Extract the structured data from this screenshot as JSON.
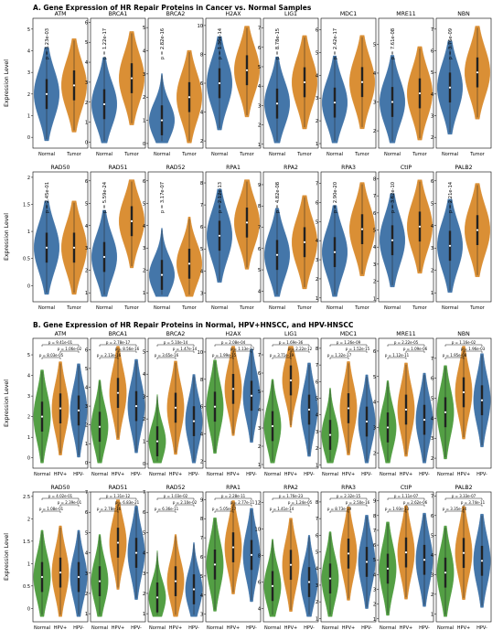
{
  "colors": {
    "normal": "#3a6fa5",
    "tumor": "#d98a2b",
    "hpvpos": "#d98a2b",
    "hpvneg": "#3a6fa5",
    "hpvneg_alt": "#4a8ab8",
    "green": "#4a9a3a"
  },
  "sectionA": {
    "title": "A. Gene Expression of HR Repair Proteins in Cancer vs. Normal Samples",
    "ylabel": "Expression Level",
    "group_labels": [
      "Normal",
      "Tumor"
    ]
  },
  "sectionB": {
    "title": "B. Gene Expression of HR Repair Proteins in Normal, HPV+HNSCC, and HPV-HNSCC",
    "ylabel": "Expression Level",
    "group_labels": [
      "Normal",
      "HPV+",
      "HPV-"
    ]
  },
  "chart_data": [
    {
      "type": "violin",
      "section": "A",
      "panels": [
        {
          "gene": "ATM",
          "pvalue": "p = 3.23e-03",
          "yticks": [
            0,
            1,
            2,
            3,
            4,
            5
          ],
          "ylim": [
            -0.5,
            5.5
          ],
          "normal": 2.0,
          "tumor": 2.4
        },
        {
          "gene": "BRCA1",
          "pvalue": "p = 1.22e-17",
          "yticks": [
            0,
            1,
            2,
            3,
            4,
            5,
            6
          ],
          "ylim": [
            -0.3,
            6.2
          ],
          "normal": 1.9,
          "tumor": 3.2
        },
        {
          "gene": "BRCA2",
          "pvalue": "p = 2.82e-16",
          "yticks": [
            0,
            1,
            2,
            3,
            4,
            5
          ],
          "ylim": [
            -0.2,
            5.4
          ],
          "normal": 1.0,
          "tumor": 2.0
        },
        {
          "gene": "H2AX",
          "pvalue": "p = 1.36e-14",
          "yticks": [
            2,
            4,
            6,
            8,
            10
          ],
          "ylim": [
            1.5,
            10.5
          ],
          "normal": 6.0,
          "tumor": 6.9
        },
        {
          "gene": "LIG1",
          "pvalue": "p = 8.78e-15",
          "yticks": [
            1,
            2,
            3,
            4,
            5,
            6,
            7
          ],
          "ylim": [
            0.8,
            7.5
          ],
          "normal": 3.1,
          "tumor": 4.2
        },
        {
          "gene": "MDC1",
          "pvalue": "p = 2.42e-17",
          "yticks": [
            1,
            2,
            3,
            4,
            5,
            6
          ],
          "ylim": [
            0.8,
            6.5
          ],
          "normal": 2.8,
          "tumor": 3.7
        },
        {
          "gene": "MRE11",
          "pvalue": "p = 7.61e-08",
          "yticks": [
            2,
            3,
            4,
            5
          ],
          "ylim": [
            1.4,
            5.9
          ],
          "normal": 3.0,
          "tumor": 3.3
        },
        {
          "gene": "NBN",
          "pvalue": "p = 3.76e-09",
          "yticks": [
            2,
            3,
            4,
            5,
            6,
            7
          ],
          "ylim": [
            1.5,
            7.5
          ],
          "normal": 4.3,
          "tumor": 5.0
        },
        {
          "gene": "RAD50",
          "pvalue": "p = 2.45e-01",
          "yticks": [
            0.0,
            0.5,
            1.0,
            1.5,
            2.0
          ],
          "ylim": [
            -0.3,
            2.1
          ],
          "normal": 0.7,
          "tumor": 0.7
        },
        {
          "gene": "RAD51",
          "pvalue": "p = 5.59e-24",
          "yticks": [
            1,
            2,
            3,
            4,
            5,
            6
          ],
          "ylim": [
            0.6,
            6.4
          ],
          "normal": 2.6,
          "tumor": 4.2
        },
        {
          "gene": "RAD52",
          "pvalue": "p = 3.17e-07",
          "yticks": [
            1,
            2,
            3,
            4,
            5,
            6
          ],
          "ylim": [
            0.6,
            6.4
          ],
          "normal": 1.8,
          "tumor": 2.3
        },
        {
          "gene": "RPA1",
          "pvalue": "p = 2.12e-13",
          "yticks": [
            3,
            4,
            5,
            6,
            7,
            8
          ],
          "ylim": [
            2.6,
            8.5
          ],
          "normal": 5.6,
          "tumor": 6.2
        },
        {
          "gene": "RPA2",
          "pvalue": "p = 4.82e-08",
          "yticks": [
            4,
            5,
            6,
            7,
            8,
            9
          ],
          "ylim": [
            3.5,
            9.6
          ],
          "normal": 5.7,
          "tumor": 6.3
        },
        {
          "gene": "RPA3",
          "pvalue": "p = 2.90e-20",
          "yticks": [
            1,
            2,
            3,
            4,
            5,
            6,
            7
          ],
          "ylim": [
            0.8,
            7.6
          ],
          "normal": 3.4,
          "tumor": 4.6
        },
        {
          "gene": "CtIP",
          "pvalue": "p = 3.62e-10",
          "yticks": [
            1,
            2,
            3,
            4,
            5,
            6,
            7,
            8
          ],
          "ylim": [
            0.8,
            8.4
          ],
          "normal": 4.4,
          "tumor": 5.2
        },
        {
          "gene": "PALB2",
          "pvalue": "p = 2.21e-14",
          "yticks": [
            1,
            2,
            3,
            4,
            5,
            6
          ],
          "ylim": [
            0.6,
            6.4
          ],
          "normal": 3.1,
          "tumor": 3.8
        }
      ]
    },
    {
      "type": "violin",
      "section": "B",
      "panels": [
        {
          "gene": "ATM",
          "pvals": [
            "p = 9.41e-01",
            "p = 1.06e-02",
            "p = 8.03e-05"
          ],
          "yticks": [
            0,
            1,
            2,
            3,
            4,
            5
          ],
          "ylim": [
            -0.5,
            5.8
          ],
          "meds": [
            2.0,
            2.4,
            2.3
          ]
        },
        {
          "gene": "BRCA1",
          "pvals": [
            "p = 2.78e-17",
            "p = 8.56e-16",
            "p = 2.13e-16"
          ],
          "yticks": [
            0,
            1,
            2,
            3,
            4,
            5,
            6
          ],
          "ylim": [
            -0.3,
            6.6
          ],
          "meds": [
            1.9,
            3.7,
            3.0
          ]
        },
        {
          "gene": "BRCA2",
          "pvals": [
            "p = 5.10e-14",
            "p = 1.47e-14",
            "p = 3.65e-16"
          ],
          "yticks": [
            0,
            1,
            2,
            3,
            4,
            5
          ],
          "ylim": [
            -0.2,
            5.6
          ],
          "meds": [
            1.0,
            2.5,
            1.9
          ]
        },
        {
          "gene": "H2AX",
          "pvals": [
            "p = 2.08e-04",
            "p = 1.13e-12",
            "p = 1.99e-15"
          ],
          "yticks": [
            2,
            4,
            6,
            8,
            10
          ],
          "ylim": [
            1.5,
            11.0
          ],
          "meds": [
            6.0,
            7.3,
            6.8
          ]
        },
        {
          "gene": "LIG1",
          "pvals": [
            "p = 1.69e-36",
            "p = 2.22e-12",
            "p = 3.71e-19"
          ],
          "yticks": [
            1,
            2,
            3,
            4,
            5,
            6,
            7
          ],
          "ylim": [
            0.8,
            7.9
          ],
          "meds": [
            3.1,
            5.6,
            4.0
          ]
        },
        {
          "gene": "MDC1",
          "pvals": [
            "p = 1.26e-09",
            "p = 1.52e-15",
            "p = 1.32e-17"
          ],
          "yticks": [
            1,
            2,
            3,
            4,
            5,
            6,
            7,
            8
          ],
          "ylim": [
            0.8,
            8.6
          ],
          "meds": [
            2.8,
            4.4,
            3.6
          ]
        },
        {
          "gene": "MRE11",
          "pvals": [
            "p = 2.22e-05",
            "p = 1.09e-06",
            "p = 1.12e-11"
          ],
          "yticks": [
            2,
            3,
            4,
            5,
            6
          ],
          "ylim": [
            1.4,
            6.5
          ],
          "meds": [
            3.0,
            3.7,
            3.3
          ]
        },
        {
          "gene": "NBN",
          "pvals": [
            "p = 1.16e-02",
            "p = 1.96e-03",
            "p = 1.95e-08"
          ],
          "yticks": [
            2,
            3,
            4,
            5,
            6,
            7
          ],
          "ylim": [
            1.5,
            8.0
          ],
          "meds": [
            4.3,
            5.3,
            4.9
          ]
        },
        {
          "gene": "RAD50",
          "pvals": [
            "p = 4.02e-01",
            "p = 2.39e-01",
            "p = 1.08e-01"
          ],
          "yticks": [
            0.0,
            0.5,
            1.0,
            1.5,
            2.0,
            2.5
          ],
          "ylim": [
            -0.3,
            2.6
          ],
          "meds": [
            0.7,
            0.8,
            0.7
          ]
        },
        {
          "gene": "RAD51",
          "pvals": [
            "p = 1.31e-12",
            "p = 6.83e-21",
            "p = 2.78e-16"
          ],
          "yticks": [
            1,
            2,
            3,
            4,
            5,
            6,
            7
          ],
          "ylim": [
            0.6,
            7.0
          ],
          "meds": [
            2.6,
            4.5,
            4.0
          ]
        },
        {
          "gene": "RAD52",
          "pvals": [
            "p = 1.03e-02",
            "p = 2.10e-02",
            "p = 6.36e-11"
          ],
          "yticks": [
            1,
            2,
            3,
            4,
            5,
            6,
            7
          ],
          "ylim": [
            0.6,
            7.0
          ],
          "meds": [
            1.8,
            2.6,
            2.2
          ]
        },
        {
          "gene": "RPA1",
          "pvals": [
            "p = 2.28e-11",
            "p = 2.77e-11",
            "p = 5.05e-17"
          ],
          "yticks": [
            3,
            4,
            5,
            6,
            7,
            8,
            9
          ],
          "ylim": [
            2.6,
            9.4
          ],
          "meds": [
            5.6,
            6.5,
            6.1
          ]
        },
        {
          "gene": "RPA2",
          "pvals": [
            "p = 1.76e-23",
            "p = 1.24e-05",
            "p = 1.41e-14"
          ],
          "yticks": [
            4,
            6,
            8,
            10,
            12
          ],
          "ylim": [
            3.0,
            12.8
          ],
          "meds": [
            5.7,
            7.3,
            6.0
          ]
        },
        {
          "gene": "RPA3",
          "pvals": [
            "p = 2.32e-15",
            "p = 2.50e-16",
            "p = 8.73e-19"
          ],
          "yticks": [
            1,
            2,
            3,
            4,
            5,
            6,
            7,
            8
          ],
          "ylim": [
            0.8,
            8.6
          ],
          "meds": [
            3.4,
            4.9,
            4.4
          ]
        },
        {
          "gene": "CtIP",
          "pvals": [
            "p = 1.11e-07",
            "p = 2.62e-06",
            "p = 1.93e-13"
          ],
          "yticks": [
            1,
            2,
            3,
            4,
            5,
            6,
            7,
            8,
            9
          ],
          "ylim": [
            0.8,
            9.6
          ],
          "meds": [
            4.4,
            5.5,
            5.0
          ]
        },
        {
          "gene": "PALB2",
          "pvals": [
            "p = 3.33e-07",
            "p = 3.74e-11",
            "p = 3.35e-14"
          ],
          "yticks": [
            1,
            2,
            3,
            4,
            5,
            6,
            7
          ],
          "ylim": [
            0.6,
            7.2
          ],
          "meds": [
            3.1,
            4.1,
            3.7
          ]
        }
      ]
    }
  ]
}
